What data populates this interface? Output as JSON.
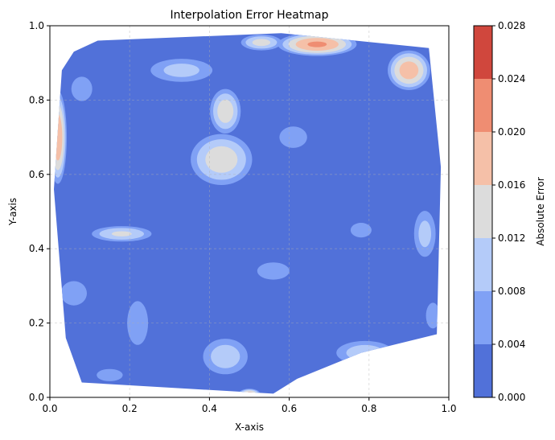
{
  "chart_data": {
    "type": "heatmap",
    "title": "Interpolation Error Heatmap",
    "xlabel": "X-axis",
    "ylabel": "Y-axis",
    "xlim": [
      0,
      1
    ],
    "ylim": [
      0,
      1
    ],
    "xticks": [
      "0.0",
      "0.2",
      "0.4",
      "0.6",
      "0.8",
      "1.0"
    ],
    "yticks": [
      "0.0",
      "0.2",
      "0.4",
      "0.6",
      "0.8",
      "1.0"
    ],
    "grid": true,
    "colorbar": {
      "label": "Absolute Error",
      "levels": [
        0.0,
        0.004,
        0.008,
        0.012,
        0.016,
        0.02,
        0.024,
        0.028
      ],
      "ticks": [
        "0.000",
        "0.004",
        "0.008",
        "0.012",
        "0.016",
        "0.020",
        "0.024",
        "0.028"
      ],
      "colors": [
        "#5171d9",
        "#80a1f5",
        "#b4cbf9",
        "#dcdcdc",
        "#f5c0a8",
        "#ef8d72",
        "#d0473d"
      ]
    },
    "domain_outline": [
      [
        0.03,
        0.88
      ],
      [
        0.06,
        0.93
      ],
      [
        0.12,
        0.96
      ],
      [
        0.58,
        0.98
      ],
      [
        0.95,
        0.94
      ],
      [
        0.98,
        0.62
      ],
      [
        0.97,
        0.17
      ],
      [
        0.78,
        0.12
      ],
      [
        0.62,
        0.05
      ],
      [
        0.56,
        0.01
      ],
      [
        0.08,
        0.04
      ],
      [
        0.04,
        0.16
      ],
      [
        0.01,
        0.56
      ]
    ],
    "hotspots": [
      {
        "x": 0.9,
        "y": 0.88,
        "rx": 0.06,
        "ry": 0.06,
        "peak": 0.019
      },
      {
        "x": 0.67,
        "y": 0.95,
        "rx": 0.11,
        "ry": 0.035,
        "peak": 0.021
      },
      {
        "x": 0.53,
        "y": 0.955,
        "rx": 0.06,
        "ry": 0.025,
        "peak": 0.014
      },
      {
        "x": 0.02,
        "y": 0.7,
        "rx": 0.025,
        "ry": 0.14,
        "peak": 0.02
      },
      {
        "x": 0.44,
        "y": 0.77,
        "rx": 0.045,
        "ry": 0.07,
        "peak": 0.015
      },
      {
        "x": 0.43,
        "y": 0.64,
        "rx": 0.09,
        "ry": 0.08,
        "peak": 0.015
      },
      {
        "x": 0.18,
        "y": 0.44,
        "rx": 0.09,
        "ry": 0.025,
        "peak": 0.013
      },
      {
        "x": 0.44,
        "y": 0.11,
        "rx": 0.07,
        "ry": 0.06,
        "peak": 0.011
      },
      {
        "x": 0.79,
        "y": 0.12,
        "rx": 0.09,
        "ry": 0.04,
        "peak": 0.011
      },
      {
        "x": 0.94,
        "y": 0.44,
        "rx": 0.035,
        "ry": 0.08,
        "peak": 0.01
      },
      {
        "x": 0.33,
        "y": 0.88,
        "rx": 0.1,
        "ry": 0.04,
        "peak": 0.01
      },
      {
        "x": 0.08,
        "y": 0.83,
        "rx": 0.04,
        "ry": 0.05,
        "peak": 0.007
      },
      {
        "x": 0.78,
        "y": 0.45,
        "rx": 0.04,
        "ry": 0.03,
        "peak": 0.007
      },
      {
        "x": 0.06,
        "y": 0.28,
        "rx": 0.05,
        "ry": 0.05,
        "peak": 0.007
      },
      {
        "x": 0.22,
        "y": 0.2,
        "rx": 0.04,
        "ry": 0.09,
        "peak": 0.007
      },
      {
        "x": 0.96,
        "y": 0.22,
        "rx": 0.03,
        "ry": 0.06,
        "peak": 0.006
      },
      {
        "x": 0.56,
        "y": 0.34,
        "rx": 0.07,
        "ry": 0.04,
        "peak": 0.006
      },
      {
        "x": 0.61,
        "y": 0.7,
        "rx": 0.06,
        "ry": 0.05,
        "peak": 0.006
      },
      {
        "x": 0.15,
        "y": 0.06,
        "rx": 0.05,
        "ry": 0.025,
        "peak": 0.007
      },
      {
        "x": 0.86,
        "y": 0.07,
        "rx": 0.06,
        "ry": 0.03,
        "peak": 0.006
      },
      {
        "x": 0.5,
        "y": 0.01,
        "rx": 0.03,
        "ry": 0.015,
        "peak": 0.018
      }
    ]
  }
}
